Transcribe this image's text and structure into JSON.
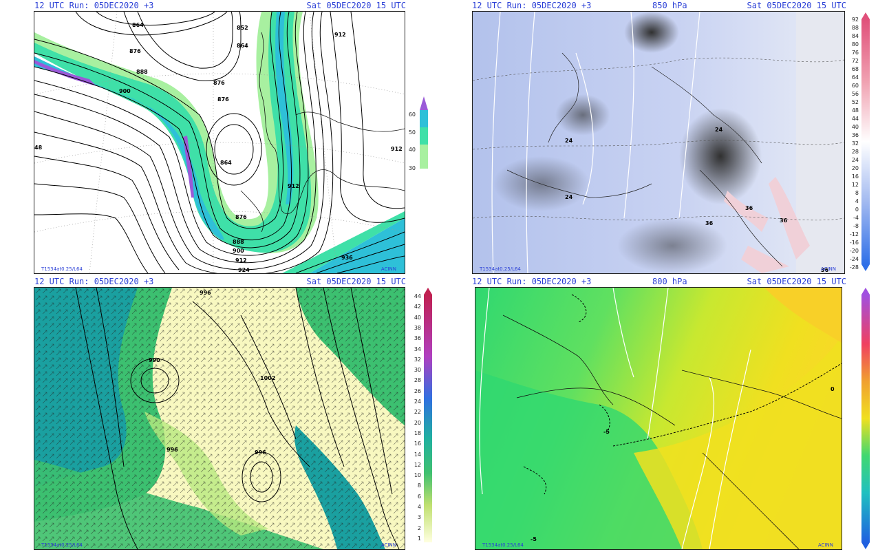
{
  "panels": [
    {
      "run": "12 UTC Run: 05DEC2020 +3",
      "level": "",
      "valid": "Sat 05DEC2020 15 UTC",
      "footer_left": "T1534at0.25/L64",
      "footer_right": "ACINN",
      "contour_labels": [
        "864",
        "852",
        "864",
        "876",
        "888",
        "876",
        "900",
        "912",
        "876",
        "864",
        "912",
        "912",
        "876",
        "888",
        "900",
        "912",
        "924",
        "936",
        "48"
      ],
      "colorbar": [
        "60",
        "50",
        "40",
        "30"
      ]
    },
    {
      "run": "12 UTC Run: 05DEC2020 +3",
      "level": "850 hPa",
      "valid": "Sat 05DEC2020 15 UTC",
      "footer_left": "T1534at0.25/L64",
      "footer_right": "ACINN",
      "contour_labels": [
        "24",
        "24",
        "24",
        "36",
        "36",
        "36",
        "36"
      ],
      "colorbar": [
        "92",
        "88",
        "84",
        "80",
        "76",
        "72",
        "68",
        "64",
        "60",
        "56",
        "52",
        "48",
        "44",
        "40",
        "36",
        "32",
        "28",
        "24",
        "20",
        "16",
        "12",
        "8",
        "4",
        "0",
        "-4",
        "-8",
        "-12",
        "-16",
        "-20",
        "-24",
        "-28"
      ]
    },
    {
      "run": "12 UTC Run: 05DEC2020 +3",
      "level": "",
      "valid": "Sat 05DEC2020 15 UTC",
      "footer_left": "T1534at0.25/L64",
      "footer_right": "ACINN",
      "contour_labels": [
        "996",
        "990",
        "1002",
        "996",
        "996"
      ],
      "colorbar": [
        "44",
        "42",
        "40",
        "38",
        "36",
        "34",
        "32",
        "30",
        "28",
        "26",
        "24",
        "22",
        "20",
        "18",
        "16",
        "14",
        "12",
        "10",
        "8",
        "6",
        "4",
        "3",
        "2",
        "1"
      ]
    },
    {
      "run": "12 UTC Run: 05DEC2020 +3",
      "level": "800 hPa",
      "valid": "Sat 05DEC2020 15 UTC",
      "footer_left": "T1534at0.25/L64",
      "footer_right": "ACINN",
      "contour_labels": [
        "-5",
        "-5",
        "0"
      ],
      "colorbar": []
    }
  ],
  "colors": {
    "header_text": "#2a3fd6",
    "jet_light": "#a8f0a0",
    "jet_mid": "#3fe0a8",
    "jet_strong": "#2ec0d8",
    "jet_max": "#9a5ad8",
    "temp_cold": "#b8c6ee",
    "temp_warm": "#f0d0d8",
    "wind_base": "#f8f8c0",
    "wind_green": "#3cc070",
    "wind_teal": "#1aa0a0",
    "t800_green": "#30d870",
    "t800_yellow": "#f0e020"
  }
}
